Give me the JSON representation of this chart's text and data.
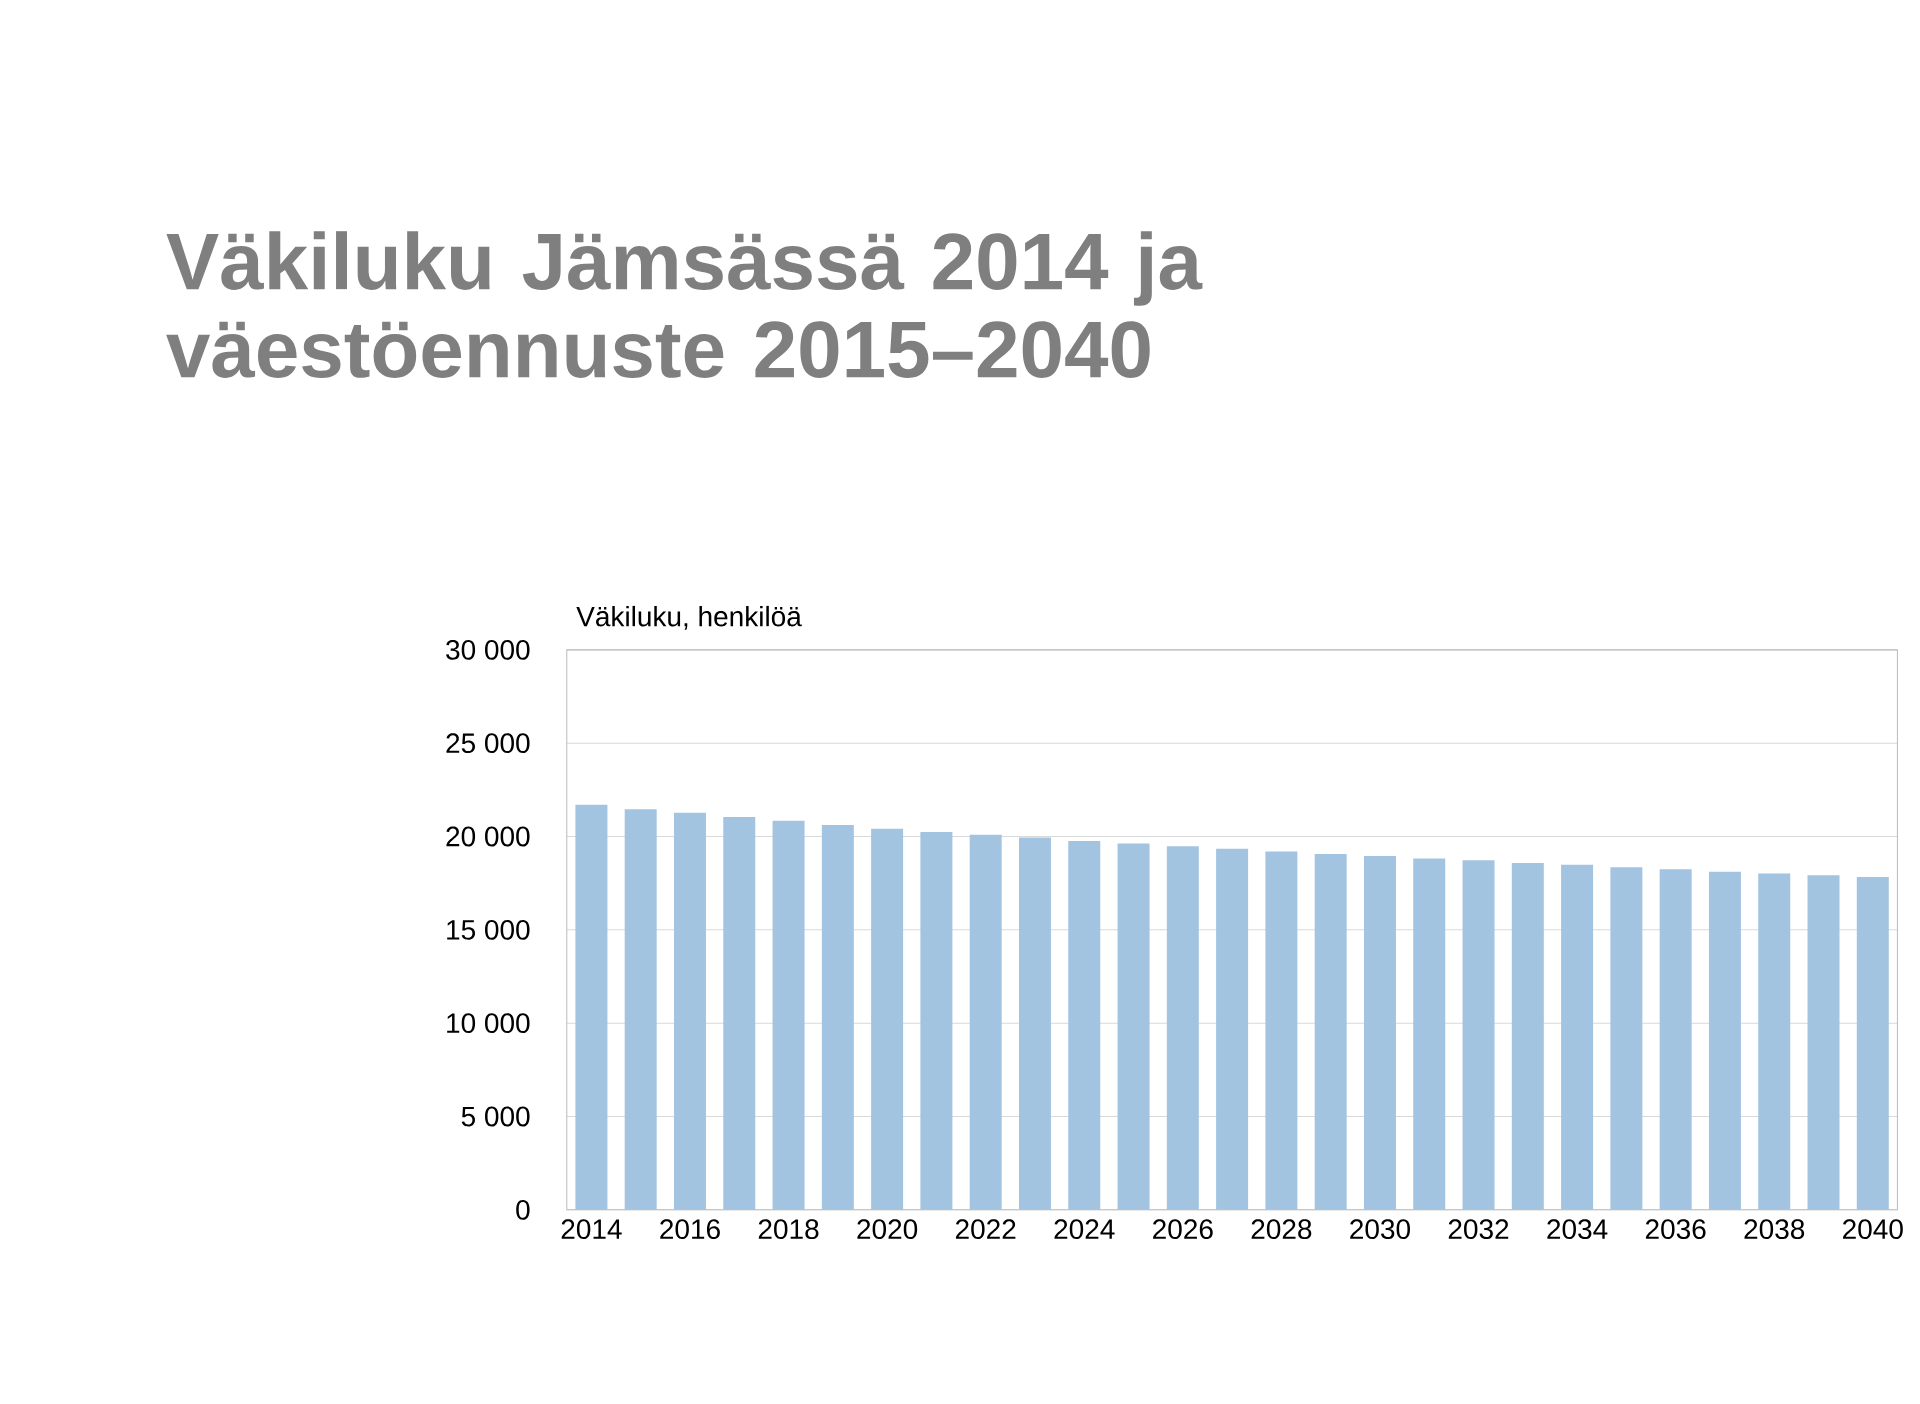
{
  "chart_data": {
    "type": "bar",
    "title": "Väkiluku Jämsässä 2014 ja väestöennuste 2015–2040",
    "ylabel": "Väkiluku, henkilöä",
    "categories": [
      "2014",
      null,
      "2016",
      null,
      "2018",
      null,
      "2020",
      null,
      "2022",
      null,
      "2024",
      null,
      "2026",
      null,
      "2028",
      null,
      "2030",
      null,
      "2032",
      null,
      "2034",
      null,
      "2036",
      null,
      "2038",
      null,
      "2040"
    ],
    "values": [
      21700,
      21460,
      21270,
      21040,
      20850,
      20610,
      20420,
      20240,
      20090,
      19950,
      19760,
      19620,
      19480,
      19340,
      19200,
      19060,
      18960,
      18820,
      18730,
      18580,
      18490,
      18350,
      18250,
      18110,
      18020,
      17920,
      17830
    ],
    "color": "#a3c4e0",
    "ylim": [
      0,
      30000
    ],
    "yticks": [
      {
        "value": 0,
        "label": "0"
      },
      {
        "value": 5000,
        "label": "5 000"
      },
      {
        "value": 10000,
        "label": "10 000"
      },
      {
        "value": 15000,
        "label": "15 000"
      },
      {
        "value": 20000,
        "label": "20 000"
      },
      {
        "value": 25000,
        "label": "25 000"
      },
      {
        "value": 30000,
        "label": "30 000"
      }
    ],
    "grid": "y"
  }
}
